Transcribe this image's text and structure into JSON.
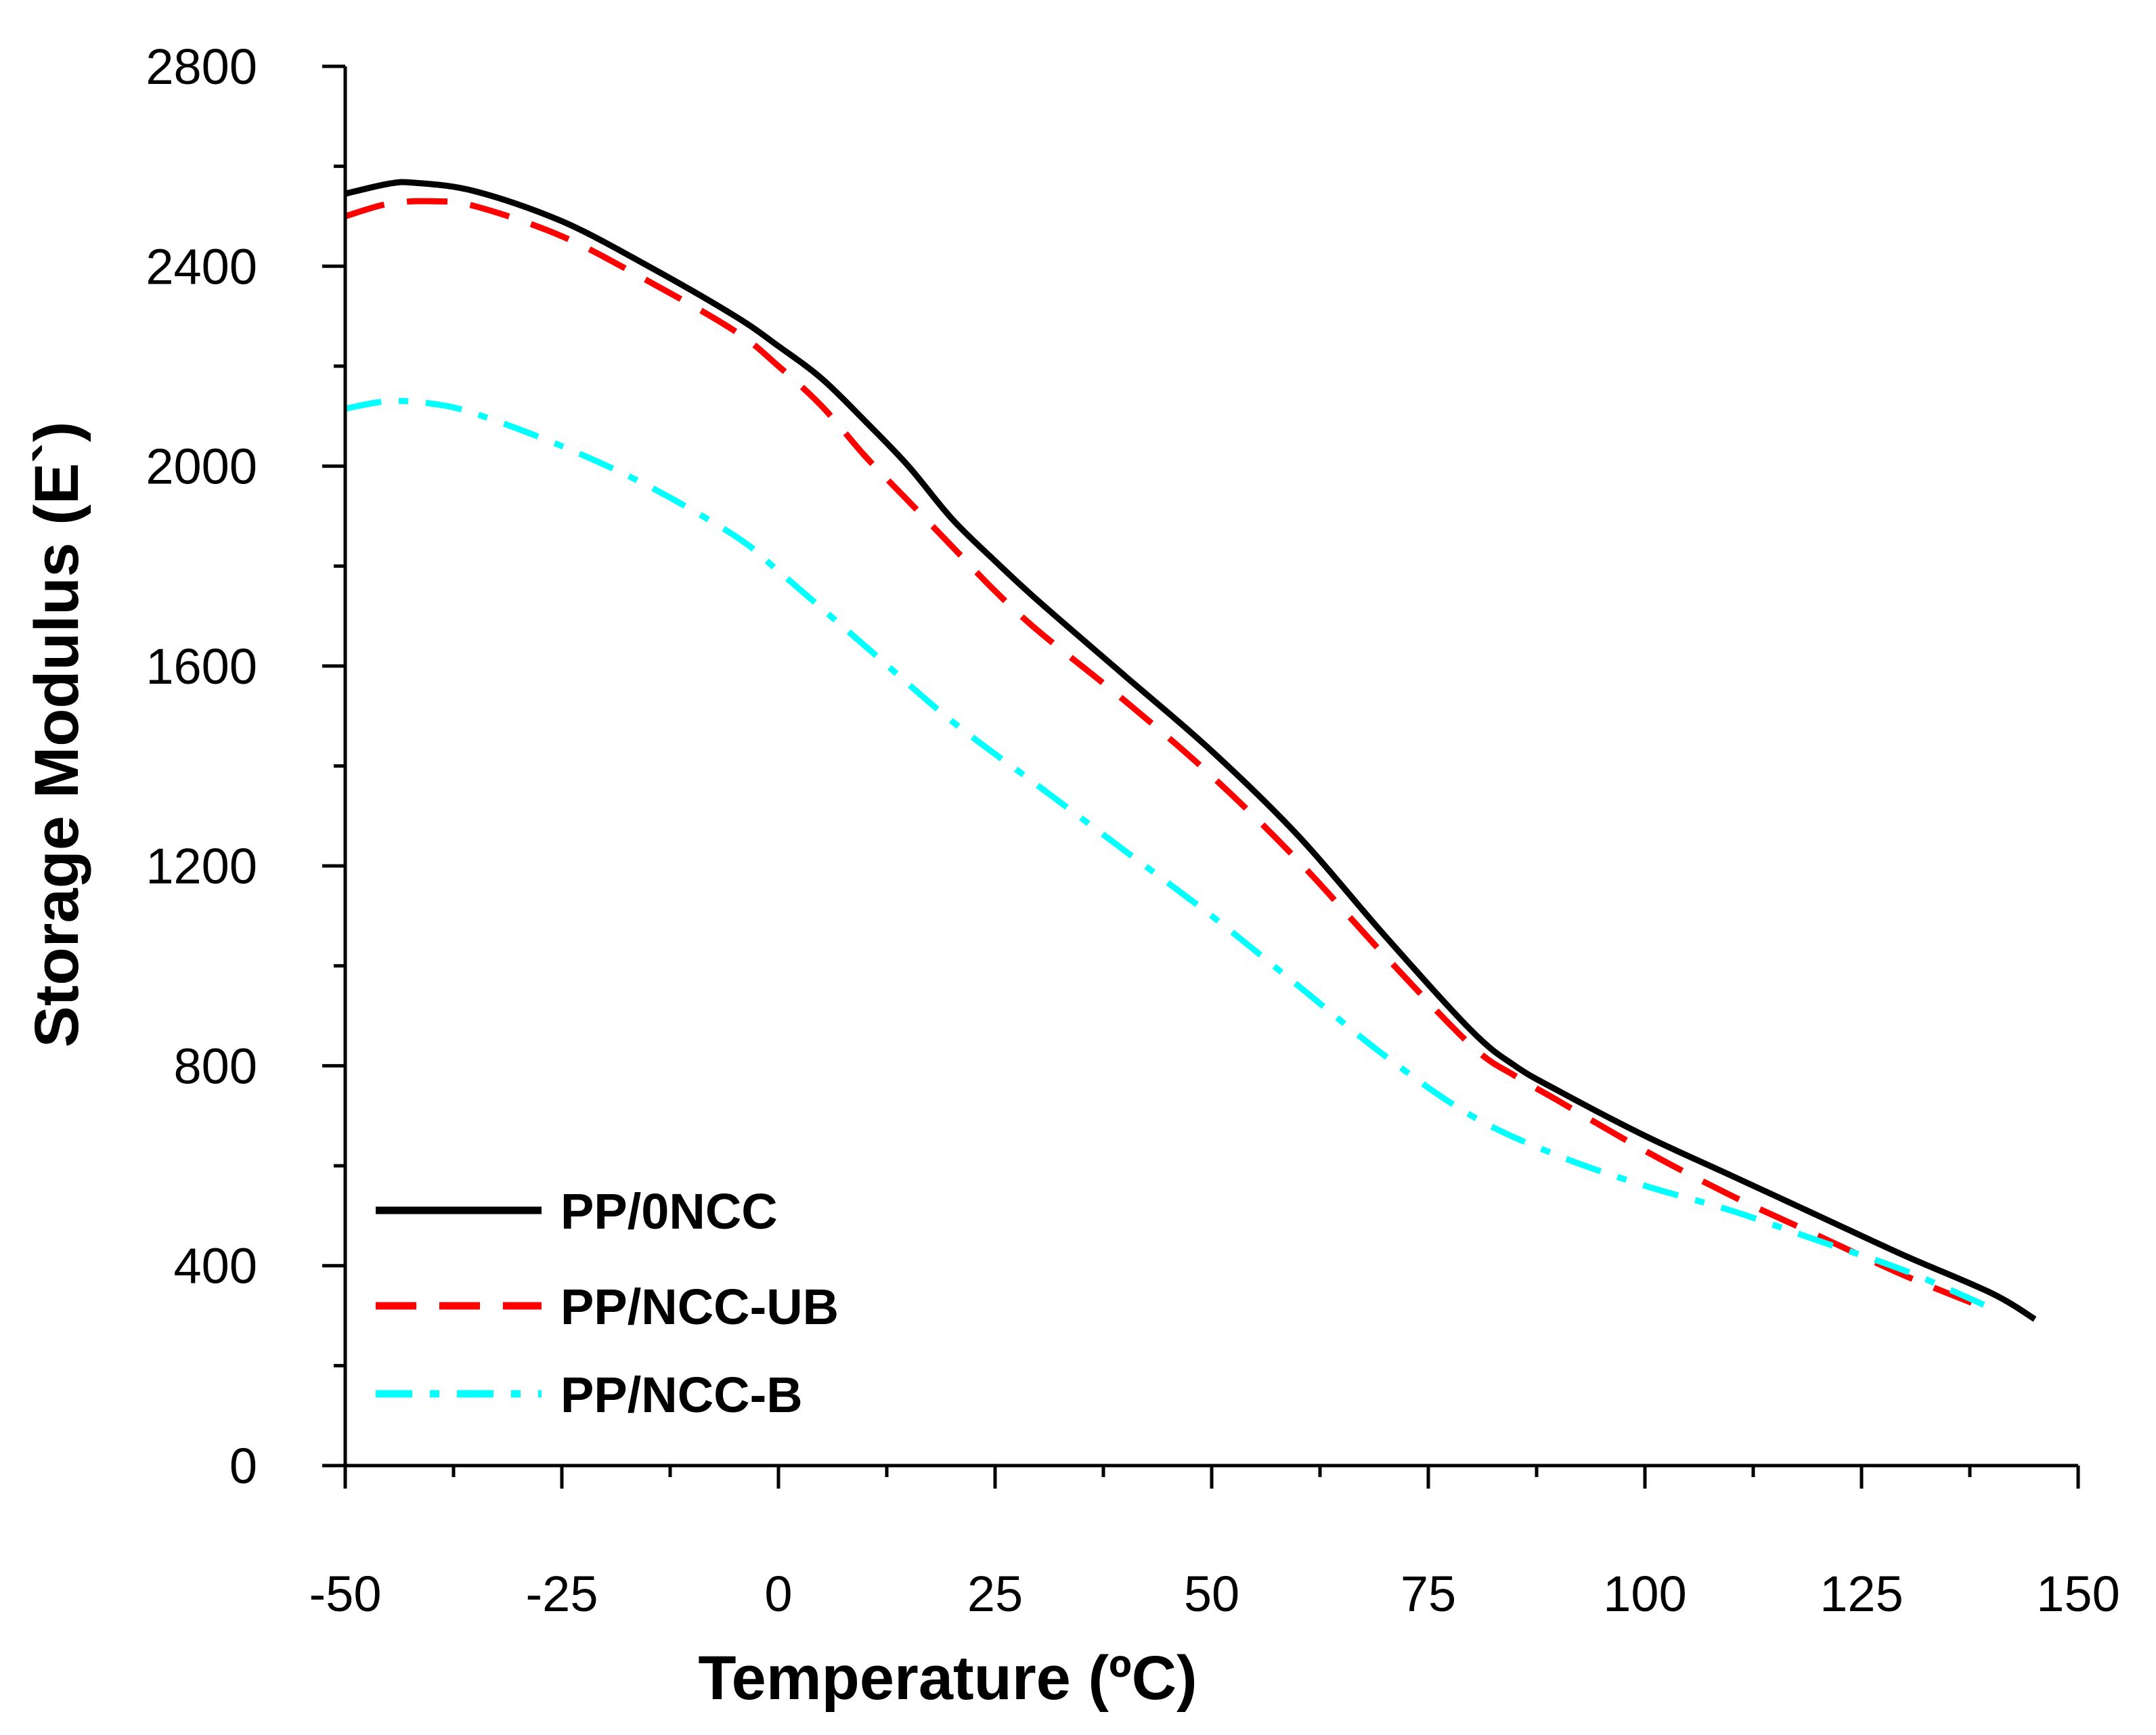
{
  "chart_data": {
    "type": "line",
    "title": "",
    "xlabel": "Temperature (ºC)",
    "ylabel": "Storage Modulus (E`)",
    "xlim": [
      -50,
      150
    ],
    "ylim": [
      0,
      2800
    ],
    "x_ticks": [
      -50,
      -25,
      0,
      25,
      50,
      75,
      100,
      125,
      150
    ],
    "y_ticks": [
      0,
      400,
      800,
      1200,
      1600,
      2000,
      2400,
      2800
    ],
    "x_tick_labels": [
      "-50",
      "-25",
      "0",
      "25",
      "50",
      "75",
      "100",
      "125",
      "150"
    ],
    "y_tick_labels": [
      "0",
      "400",
      "800",
      "1200",
      "1600",
      "2000",
      "2400",
      "2800"
    ],
    "grid": false,
    "legend_position": "bottom-left",
    "series": [
      {
        "name": "PP/0NCC",
        "color": "#000000",
        "style": "solid",
        "x": [
          -50,
          -45,
          -42,
          -35,
          -25,
          -15,
          -5,
          0,
          5,
          10,
          15,
          20,
          25,
          30,
          40,
          50,
          60,
          70,
          80,
          85,
          90,
          100,
          110,
          120,
          130,
          140,
          145
        ],
        "y": [
          2545,
          2565,
          2567,
          2550,
          2490,
          2400,
          2300,
          2240,
          2175,
          2090,
          2000,
          1895,
          1810,
          1730,
          1580,
          1430,
          1260,
          1060,
          870,
          800,
          750,
          660,
          580,
          500,
          420,
          345,
          293
        ]
      },
      {
        "name": "PP/NCC-UB",
        "color": "#ff0000",
        "style": "dashed",
        "x": [
          -50,
          -45,
          -40,
          -35,
          -25,
          -15,
          -5,
          0,
          5,
          10,
          15,
          20,
          25,
          30,
          40,
          50,
          60,
          70,
          80,
          85,
          90,
          100,
          110,
          120,
          130,
          140
        ],
        "y": [
          2500,
          2525,
          2530,
          2520,
          2460,
          2370,
          2270,
          2200,
          2120,
          2020,
          1930,
          1840,
          1750,
          1670,
          1530,
          1380,
          1210,
          1020,
          840,
          780,
          730,
          630,
          540,
          460,
          380,
          310
        ]
      },
      {
        "name": "PP/NCC-B",
        "color": "#00ffff",
        "style": "dash-dot",
        "x": [
          -50,
          -45,
          -40,
          -35,
          -25,
          -15,
          -5,
          0,
          10,
          20,
          30,
          40,
          50,
          60,
          70,
          80,
          90,
          100,
          110,
          120,
          130,
          140
        ],
        "y": [
          2115,
          2130,
          2125,
          2105,
          2040,
          1960,
          1860,
          1790,
          1640,
          1490,
          1360,
          1230,
          1100,
          960,
          820,
          700,
          620,
          560,
          510,
          450,
          390,
          315
        ]
      }
    ]
  }
}
